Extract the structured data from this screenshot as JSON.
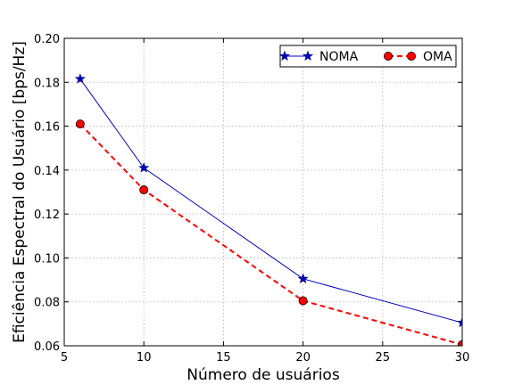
{
  "chart_data": {
    "type": "line",
    "title": "",
    "xlabel": "Número de usuários",
    "ylabel": "Eficiência Espectral do Usuário [bps/Hz]",
    "xlim": [
      5,
      30
    ],
    "ylim": [
      0.06,
      0.2
    ],
    "xticks": [
      5,
      10,
      15,
      20,
      25,
      30
    ],
    "yticks": [
      0.06,
      0.08,
      0.1,
      0.12,
      0.14,
      0.16,
      0.18,
      0.2
    ],
    "ytick_labels": [
      "0.06",
      "0.08",
      "0.10",
      "0.12",
      "0.14",
      "0.16",
      "0.18",
      "0.20"
    ],
    "grid": true,
    "legend_position": "top-right",
    "x": [
      6,
      10,
      20,
      30
    ],
    "series": [
      {
        "name": "NOMA",
        "values": [
          0.1815,
          0.141,
          0.0905,
          0.0705
        ],
        "color": "#0000bf",
        "marker": "star",
        "linestyle": "solid"
      },
      {
        "name": "OMA",
        "values": [
          0.161,
          0.131,
          0.0805,
          0.0605
        ],
        "color": "#ff0000",
        "marker": "circle",
        "linestyle": "dashed"
      }
    ]
  }
}
